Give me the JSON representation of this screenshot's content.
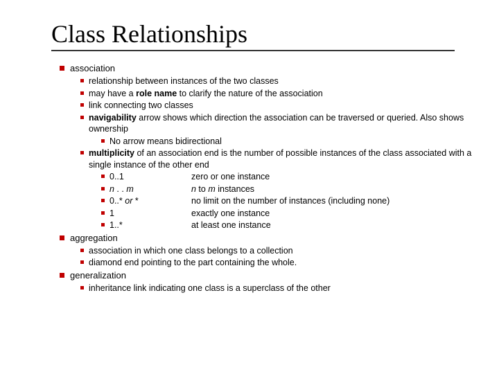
{
  "colors": {
    "text": "#000000",
    "bullet": "#c00000",
    "underline": "#333333",
    "background": "#ffffff"
  },
  "typography": {
    "title_family": "Times New Roman",
    "title_size_pt": 27,
    "body_family": "Arial",
    "body_size_pt": 9
  },
  "title": "Class Relationships",
  "sections": [
    {
      "heading": "association",
      "items": [
        {
          "text": "relationship between instances of the two classes"
        },
        {
          "prefix": "may have a ",
          "bold": "role name",
          "suffix": " to clarify the nature of the association"
        },
        {
          "text": "link connecting two classes"
        },
        {
          "bold": "navigability",
          "suffix": " arrow shows which direction the association can be traversed or queried.  Also shows ownership"
        }
      ],
      "subitems": [
        {
          "text": "No arrow means bidirectional"
        }
      ],
      "item2": {
        "bold": "multiplicity",
        "suffix": " of an association end is the number of possible instances of the class associated with a single instance of the other end"
      },
      "table": [
        {
          "c1": "0..1",
          "c2": "zero or one instance"
        },
        {
          "c1_a": "n",
          "c1_b": " . . ",
          "c1_c": "m",
          "c2_a": "n",
          "c2_b": " to ",
          "c2_c": "m",
          "c2_d": " instances"
        },
        {
          "c1_a": "0..* ",
          "c1_b": "or",
          "c1_c": " *",
          "c2": "no limit on the number of instances (including none)"
        },
        {
          "c1": "1",
          "c2": "exactly one instance"
        },
        {
          "c1": "1..*",
          "c2": "at least one instance"
        }
      ]
    },
    {
      "heading": "aggregation",
      "items": [
        {
          "text": "association in which one class belongs to a collection"
        },
        {
          "text": "diamond end pointing to the part containing the whole."
        }
      ]
    },
    {
      "heading": "generalization",
      "items": [
        {
          "text": "inheritance link indicating one class is a superclass of the other"
        }
      ]
    }
  ]
}
